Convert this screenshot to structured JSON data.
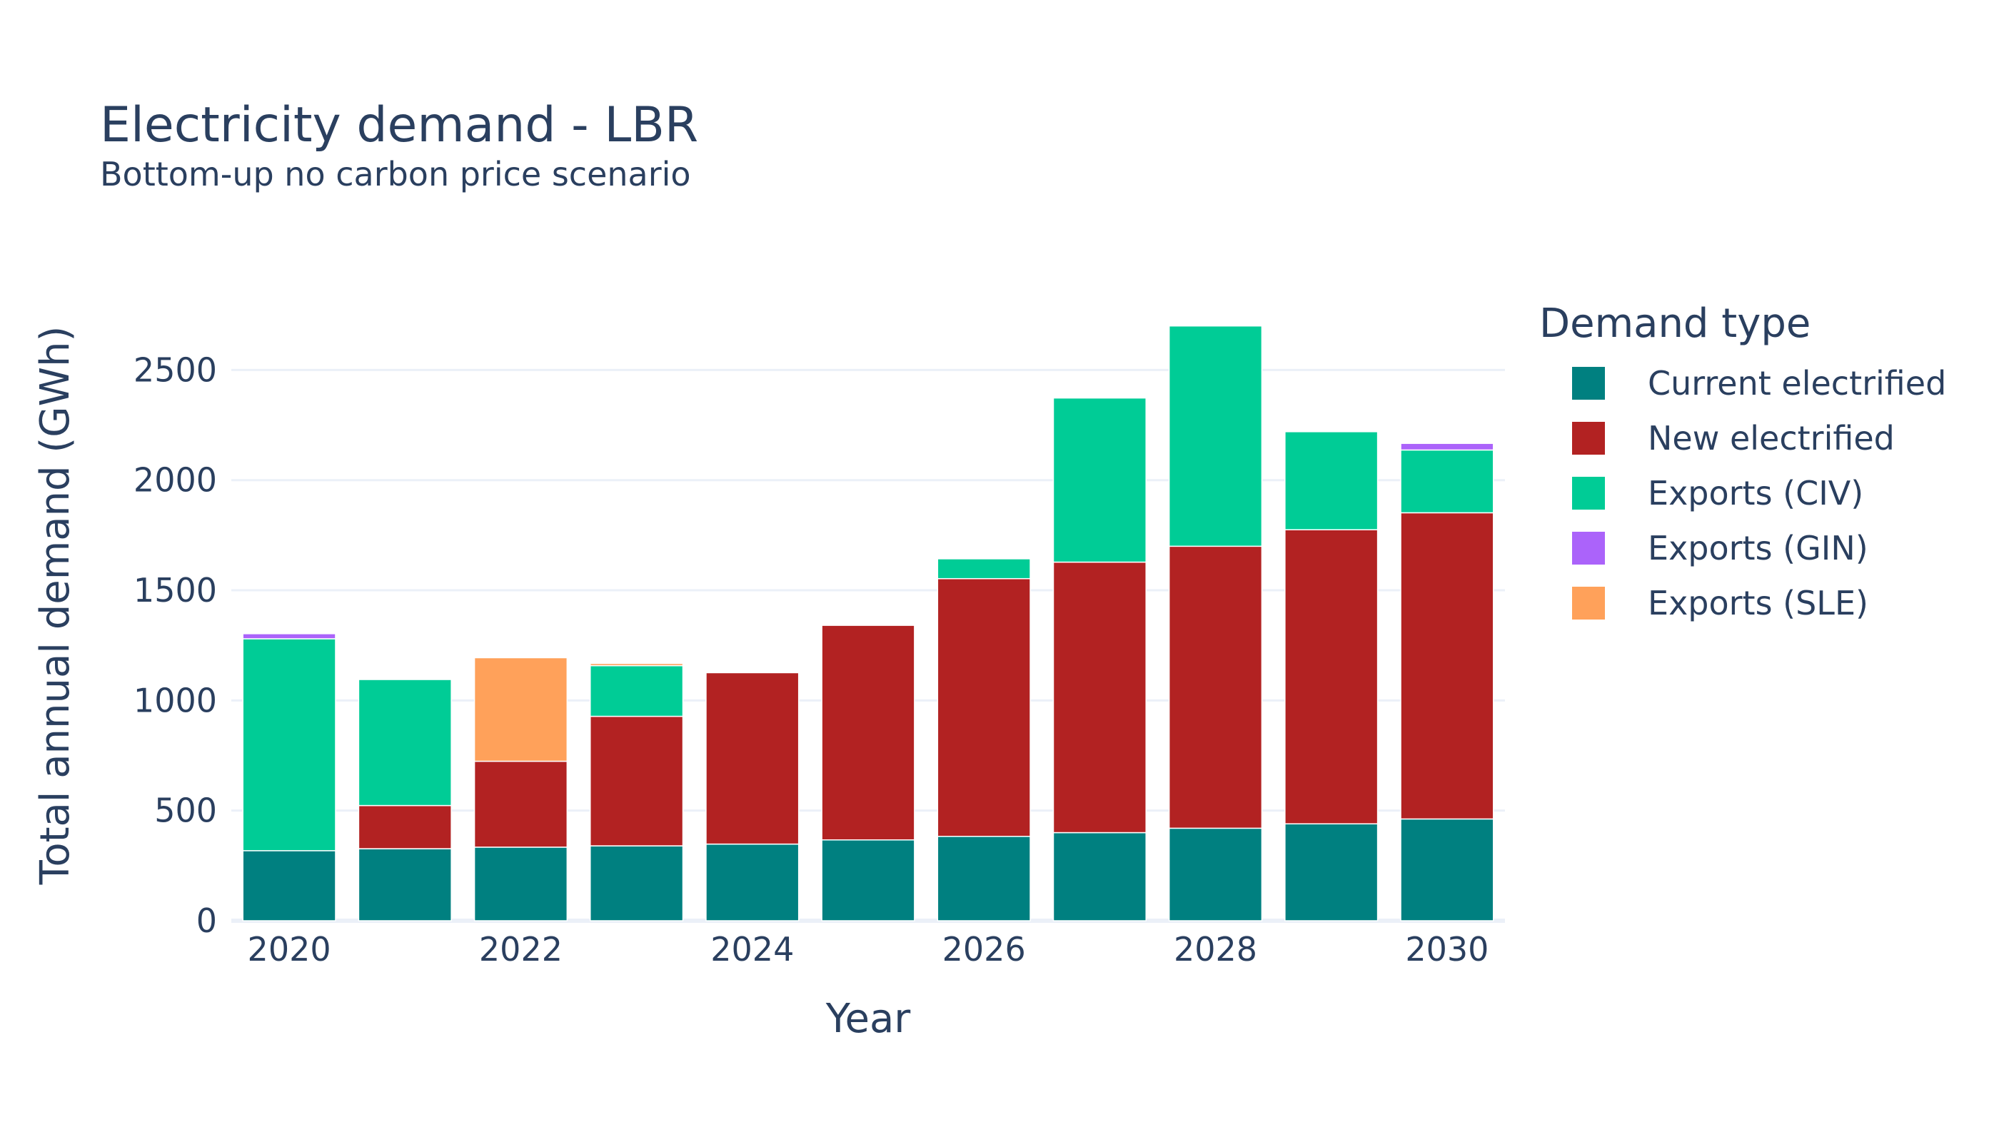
{
  "chart_data": {
    "type": "bar",
    "stacked": true,
    "title": "Electricity demand - LBR",
    "subtitle": "Bottom-up no carbon price scenario",
    "xlabel": "Year",
    "ylabel": "Total annual demand (GWh)",
    "x": [
      2020,
      2021,
      2022,
      2023,
      2024,
      2025,
      2026,
      2027,
      2028,
      2029,
      2030
    ],
    "x_ticks": [
      "2020",
      "2022",
      "2024",
      "2026",
      "2028",
      "2030"
    ],
    "ylim": [
      0,
      2780
    ],
    "y_ticks": [
      0,
      500,
      1000,
      1500,
      2000,
      2500
    ],
    "y_tick_labels": [
      "0",
      "500",
      "1000",
      "1500",
      "2000",
      "2500"
    ],
    "grid": true,
    "legend_title": "Demand type",
    "legend_position": "right",
    "series": [
      {
        "name": "Current electrified",
        "color": "#008080",
        "values": [
          318,
          327,
          334,
          340,
          348,
          367,
          383,
          400,
          420,
          440,
          462
        ]
      },
      {
        "name": "New electrified",
        "color": "#b22222",
        "values": [
          0,
          196,
          390,
          588,
          778,
          974,
          1170,
          1228,
          1280,
          1335,
          1390
        ]
      },
      {
        "name": "Exports (CIV)",
        "color": "#00cc96",
        "values": [
          962,
          572,
          0,
          230,
          0,
          0,
          90,
          745,
          1000,
          445,
          285
        ]
      },
      {
        "name": "Exports (GIN)",
        "color": "#ab63fa",
        "values": [
          23,
          0,
          0,
          0,
          0,
          0,
          0,
          0,
          0,
          0,
          30
        ]
      },
      {
        "name": "Exports (SLE)",
        "color": "#ffa15a",
        "values": [
          0,
          0,
          470,
          10,
          0,
          0,
          0,
          0,
          0,
          0,
          0
        ]
      }
    ]
  }
}
